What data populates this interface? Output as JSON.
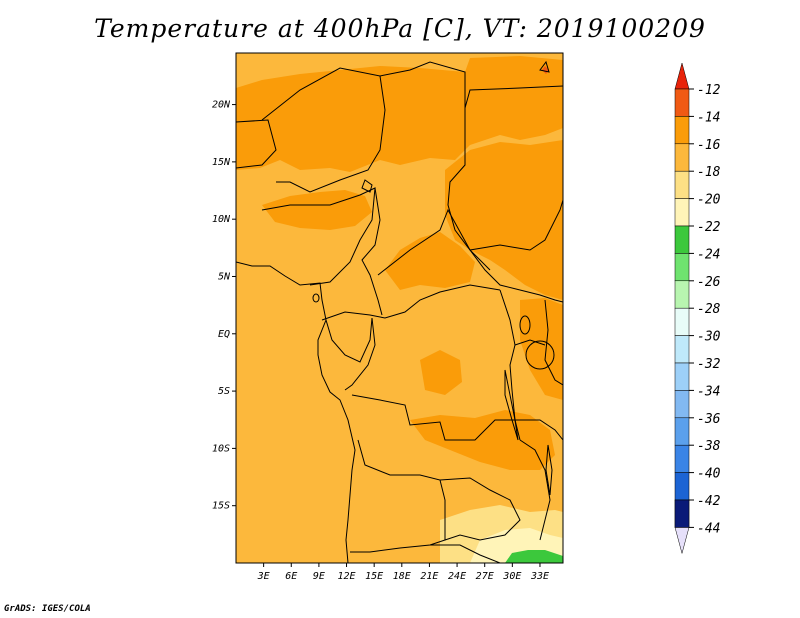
{
  "title": "Temperature at 400hPa [C], VT: 2019100209",
  "credit": "GrADS: IGES/COLA",
  "map": {
    "lon_range": [
      0,
      35.5
    ],
    "lat_range": [
      -20,
      24.5
    ],
    "lon_ticks": [
      {
        "value": 3,
        "label": "3E"
      },
      {
        "value": 6,
        "label": "6E"
      },
      {
        "value": 9,
        "label": "9E"
      },
      {
        "value": 12,
        "label": "12E"
      },
      {
        "value": 15,
        "label": "15E"
      },
      {
        "value": 18,
        "label": "18E"
      },
      {
        "value": 21,
        "label": "21E"
      },
      {
        "value": 24,
        "label": "24E"
      },
      {
        "value": 27,
        "label": "27E"
      },
      {
        "value": 30,
        "label": "30E"
      },
      {
        "value": 33,
        "label": "33E"
      }
    ],
    "lat_ticks": [
      {
        "value": 20,
        "label": "20N"
      },
      {
        "value": 15,
        "label": "15N"
      },
      {
        "value": 10,
        "label": "10N"
      },
      {
        "value": 5,
        "label": "5N"
      },
      {
        "value": 0,
        "label": "EQ"
      },
      {
        "value": -5,
        "label": "5S"
      },
      {
        "value": -10,
        "label": "10S"
      },
      {
        "value": -15,
        "label": "15S"
      }
    ],
    "base_color": "#fcb83c"
  },
  "colorbar": {
    "labels": [
      "-12",
      "-14",
      "-16",
      "-18",
      "-20",
      "-22",
      "-24",
      "-26",
      "-28",
      "-30",
      "-32",
      "-34",
      "-36",
      "-38",
      "-40",
      "-42",
      "-44"
    ],
    "colors": [
      "#f05a14",
      "#fa9c09",
      "#fcb83c",
      "#fde085",
      "#fff4b8",
      "#3cc83c",
      "#6fe36f",
      "#b8f5b0",
      "#e8fcf8",
      "#bfe9fa",
      "#9dd0f8",
      "#82b9f2",
      "#5ba0ec",
      "#3a84e6",
      "#1c64d4",
      "#1040a8",
      "#0a1a78"
    ],
    "top_arrow_color": "#e8230a",
    "bottom_arrow_color": "#e6e0fa"
  }
}
